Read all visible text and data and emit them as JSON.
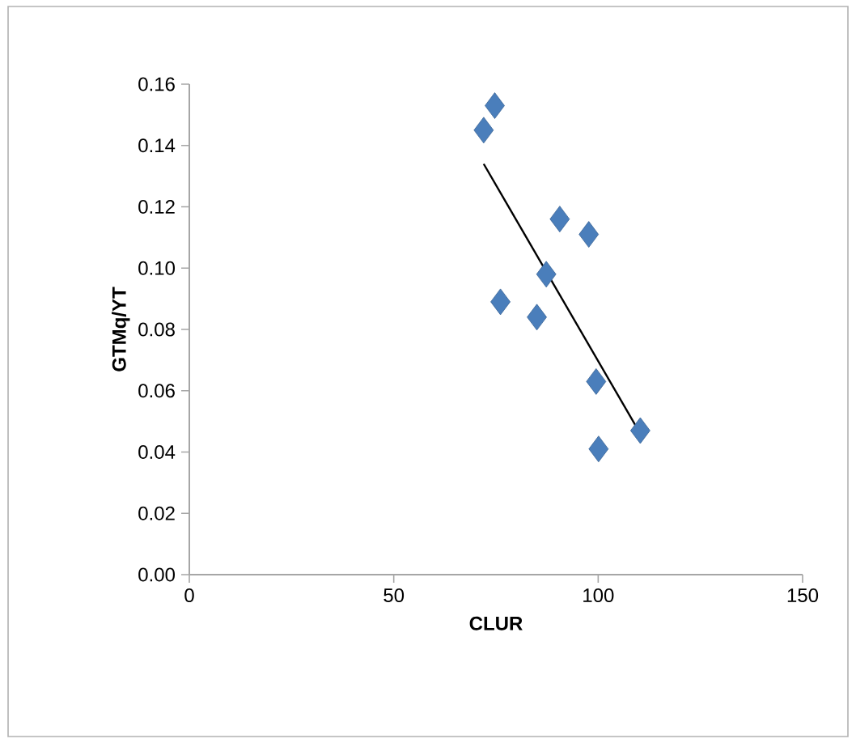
{
  "chart_data": {
    "type": "scatter",
    "xlabel": "CLUR",
    "ylabel": "GTMq/YT",
    "xlim": [
      0,
      150
    ],
    "xticks": [
      0,
      50,
      100,
      150
    ],
    "ylim": [
      0,
      0.16
    ],
    "yticks": [
      {
        "value": 0,
        "label": "0.00"
      },
      {
        "value": 0.02,
        "label": "0.02"
      },
      {
        "value": 0.04,
        "label": "0.04"
      },
      {
        "value": 0.06,
        "label": "0.06"
      },
      {
        "value": 0.08,
        "label": "0.08"
      },
      {
        "value": 0.1,
        "label": "0.10"
      },
      {
        "value": 0.12,
        "label": "0.12"
      },
      {
        "value": 0.14,
        "label": "0.14"
      },
      {
        "value": 0.16,
        "label": "0.16"
      }
    ],
    "grid": false,
    "series": [
      {
        "color": "#4a7ebb",
        "marker": "diamond",
        "x": [
          74.7,
          72.0,
          90.6,
          97.7,
          87.3,
          76.1,
          85.0,
          99.5,
          110.3,
          100.1
        ],
        "values": [
          0.153,
          0.145,
          0.116,
          0.111,
          0.098,
          0.089,
          0.084,
          0.063,
          0.047,
          0.041
        ]
      },
      {
        "type": "line",
        "marker": "none",
        "color": "#000000",
        "x": [
          72.0,
          110.3
        ],
        "values": [
          0.134,
          0.046
        ]
      }
    ]
  }
}
